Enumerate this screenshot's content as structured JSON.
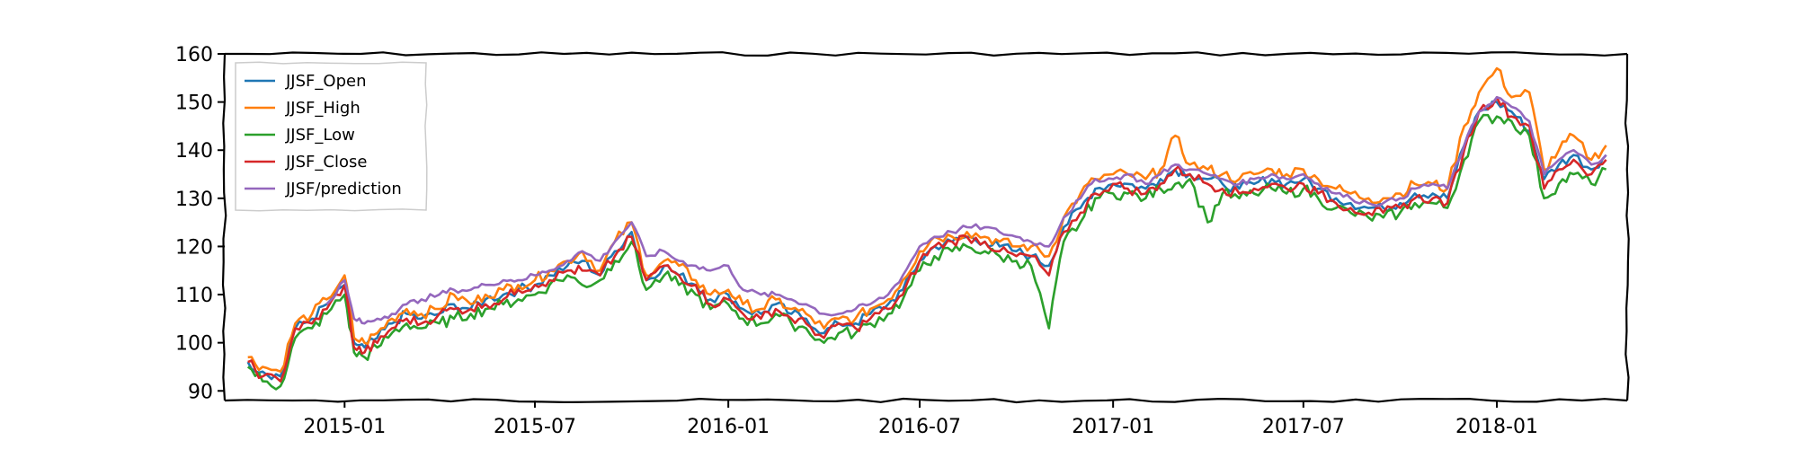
{
  "chart_data": {
    "type": "line",
    "title": "",
    "xlabel": "",
    "ylabel": "",
    "ylim": [
      88,
      160
    ],
    "xlim": [
      "2014-09-09",
      "2018-05-05"
    ],
    "grid": false,
    "style": "xkcd sketch",
    "legend": {
      "placement": "top-left",
      "entries": [
        "JJSF_Open",
        "JJSF_High",
        "JJSF_Low",
        "JJSF_Close",
        "JJSF/prediction"
      ]
    },
    "x_ticks": [
      {
        "date": "2015-01-01",
        "label": "2015-01"
      },
      {
        "date": "2015-07-01",
        "label": "2015-07"
      },
      {
        "date": "2016-01-01",
        "label": "2016-01"
      },
      {
        "date": "2016-07-01",
        "label": "2016-07"
      },
      {
        "date": "2017-01-01",
        "label": "2017-01"
      },
      {
        "date": "2017-07-01",
        "label": "2017-07"
      },
      {
        "date": "2018-01-01",
        "label": "2018-01"
      }
    ],
    "y_ticks": [
      90,
      100,
      110,
      120,
      130,
      140,
      150,
      160
    ],
    "x": [
      "2014-10-01",
      "2014-10-15",
      "2014-11-01",
      "2014-11-15",
      "2014-12-01",
      "2014-12-15",
      "2015-01-01",
      "2015-01-10",
      "2015-01-20",
      "2015-02-01",
      "2015-02-15",
      "2015-03-01",
      "2015-03-15",
      "2015-04-01",
      "2015-04-15",
      "2015-05-01",
      "2015-05-15",
      "2015-06-01",
      "2015-06-15",
      "2015-07-01",
      "2015-07-15",
      "2015-08-01",
      "2015-08-15",
      "2015-09-01",
      "2015-09-15",
      "2015-10-01",
      "2015-10-15",
      "2015-11-01",
      "2015-11-15",
      "2015-12-01",
      "2015-12-15",
      "2016-01-01",
      "2016-01-15",
      "2016-02-01",
      "2016-02-15",
      "2016-03-01",
      "2016-03-15",
      "2016-04-01",
      "2016-04-15",
      "2016-05-01",
      "2016-05-15",
      "2016-06-01",
      "2016-06-15",
      "2016-07-01",
      "2016-07-15",
      "2016-08-01",
      "2016-08-15",
      "2016-09-01",
      "2016-09-15",
      "2016-10-01",
      "2016-10-15",
      "2016-11-01",
      "2016-11-15",
      "2016-12-01",
      "2016-12-15",
      "2017-01-01",
      "2017-01-15",
      "2017-02-01",
      "2017-02-15",
      "2017-03-01",
      "2017-03-15",
      "2017-04-01",
      "2017-04-15",
      "2017-05-01",
      "2017-05-15",
      "2017-06-01",
      "2017-06-15",
      "2017-07-01",
      "2017-07-15",
      "2017-08-01",
      "2017-08-15",
      "2017-09-01",
      "2017-09-15",
      "2017-10-01",
      "2017-10-15",
      "2017-11-01",
      "2017-11-15",
      "2017-12-01",
      "2017-12-15",
      "2018-01-01",
      "2018-01-15",
      "2018-02-01",
      "2018-02-15",
      "2018-03-01",
      "2018-03-15",
      "2018-04-01",
      "2018-04-15"
    ],
    "series": [
      {
        "name": "JJSF_Open",
        "color": "#1f77b4",
        "values": [
          96,
          94,
          93,
          103,
          105,
          108,
          112,
          100,
          99,
          101,
          104,
          106,
          105,
          106,
          108,
          107,
          109,
          110,
          111,
          112,
          114,
          116,
          117,
          114,
          119,
          123,
          113,
          116,
          114,
          112,
          109,
          110,
          107,
          106,
          108,
          106,
          105,
          102,
          104,
          104,
          106,
          108,
          111,
          117,
          120,
          121,
          122,
          121,
          120,
          119,
          118,
          116,
          124,
          128,
          132,
          133,
          133,
          132,
          134,
          136,
          135,
          134,
          133,
          132,
          133,
          134,
          133,
          134,
          132,
          130,
          129,
          128,
          128,
          129,
          131,
          131,
          130,
          141,
          148,
          150,
          148,
          144,
          134,
          137,
          139,
          136,
          139
        ]
      },
      {
        "name": "JJSF_High",
        "color": "#ff7f0e",
        "values": [
          97,
          95,
          94,
          104,
          106,
          109,
          114,
          101,
          100,
          102,
          105,
          107,
          106,
          107,
          110,
          108,
          110,
          111,
          112,
          113,
          115,
          117,
          119,
          115,
          121,
          125,
          114,
          117,
          116,
          113,
          110,
          111,
          108,
          107,
          109,
          107,
          106,
          103,
          105,
          105,
          107,
          109,
          113,
          119,
          122,
          122,
          123,
          122,
          121,
          120,
          120,
          118,
          126,
          131,
          134,
          135,
          135,
          134,
          136,
          143,
          137,
          136,
          135,
          134,
          135,
          136,
          135,
          136,
          134,
          132,
          131,
          130,
          130,
          131,
          133,
          133,
          132,
          145,
          152,
          157,
          151,
          152,
          136,
          140,
          143,
          138,
          141
        ]
      },
      {
        "name": "JJSF_Low",
        "color": "#2ca02c",
        "values": [
          95,
          92,
          91,
          101,
          103,
          106,
          110,
          98,
          97,
          99,
          102,
          104,
          103,
          104,
          105,
          106,
          107,
          108,
          109,
          110,
          112,
          114,
          112,
          113,
          117,
          121,
          111,
          114,
          112,
          110,
          107,
          108,
          105,
          104,
          106,
          104,
          103,
          100,
          102,
          102,
          104,
          106,
          109,
          115,
          118,
          119,
          120,
          119,
          118,
          117,
          116,
          103,
          121,
          125,
          130,
          131,
          131,
          130,
          132,
          133,
          134,
          125,
          131,
          130,
          131,
          132,
          131,
          132,
          130,
          128,
          127,
          126,
          126,
          127,
          129,
          129,
          128,
          138,
          146,
          147,
          146,
          143,
          130,
          133,
          135,
          133,
          136
        ]
      },
      {
        "name": "JJSF_Close",
        "color": "#d62728",
        "values": [
          96,
          93,
          92,
          103,
          104,
          107,
          112,
          99,
          98,
          100,
          103,
          105,
          104,
          106,
          107,
          107,
          108,
          109,
          111,
          112,
          113,
          115,
          115,
          114,
          118,
          122,
          113,
          116,
          114,
          112,
          108,
          109,
          106,
          105,
          107,
          105,
          104,
          101,
          104,
          103,
          105,
          107,
          110,
          117,
          120,
          121,
          122,
          121,
          119,
          118,
          118,
          114,
          123,
          127,
          131,
          133,
          132,
          131,
          133,
          136,
          135,
          133,
          132,
          131,
          132,
          133,
          132,
          133,
          131,
          129,
          128,
          127,
          127,
          128,
          130,
          130,
          129,
          140,
          148,
          151,
          147,
          145,
          132,
          136,
          138,
          135,
          138
        ]
      },
      {
        "name": "JJSF/prediction",
        "color": "#9467bd",
        "x_start": "2014-12-15",
        "values": [
          null,
          null,
          null,
          null,
          null,
          108,
          113,
          105,
          104,
          105,
          106,
          108,
          109,
          110,
          111,
          111,
          112,
          113,
          113,
          114,
          115,
          117,
          119,
          117,
          121,
          125,
          118,
          119,
          117,
          116,
          115,
          116,
          111,
          110,
          110,
          109,
          108,
          106,
          106,
          107,
          108,
          110,
          114,
          120,
          122,
          123,
          124,
          124,
          123,
          122,
          121,
          120,
          126,
          130,
          134,
          134,
          135,
          133,
          135,
          137,
          136,
          135,
          134,
          133,
          134,
          135,
          134,
          135,
          133,
          131,
          130,
          129,
          129,
          130,
          132,
          133,
          132,
          141,
          148,
          151,
          149,
          146,
          135,
          138,
          140,
          137,
          139
        ]
      }
    ]
  }
}
